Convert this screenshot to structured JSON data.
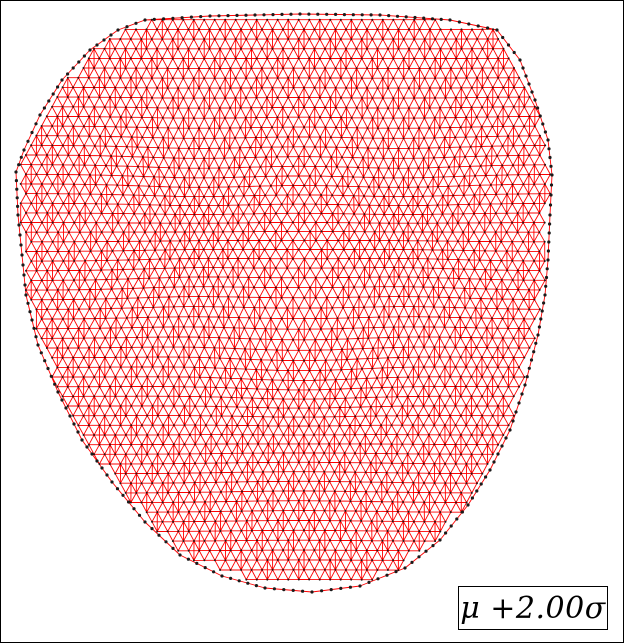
{
  "figure": {
    "label": "μ +2.00σ",
    "mesh_color": "#ff0000",
    "vertex_color": "#1a1a1a",
    "background": "#ffffff",
    "border_color": "#000000"
  }
}
